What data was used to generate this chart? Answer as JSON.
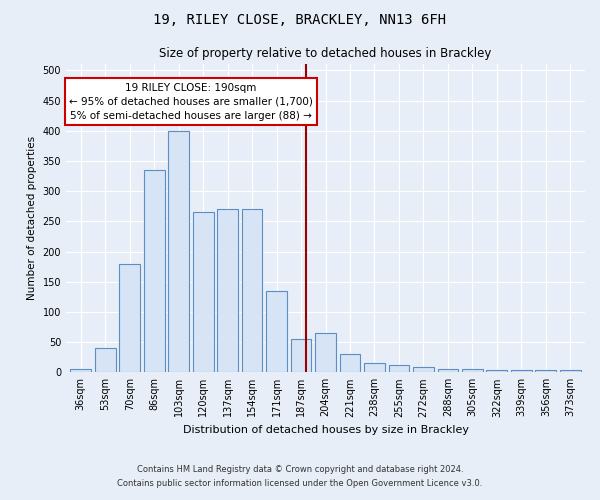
{
  "title1": "19, RILEY CLOSE, BRACKLEY, NN13 6FH",
  "title2": "Size of property relative to detached houses in Brackley",
  "xlabel": "Distribution of detached houses by size in Brackley",
  "ylabel": "Number of detached properties",
  "bar_labels": [
    "36sqm",
    "53sqm",
    "70sqm",
    "86sqm",
    "103sqm",
    "120sqm",
    "137sqm",
    "154sqm",
    "171sqm",
    "187sqm",
    "204sqm",
    "221sqm",
    "238sqm",
    "255sqm",
    "272sqm",
    "288sqm",
    "305sqm",
    "322sqm",
    "339sqm",
    "356sqm",
    "373sqm"
  ],
  "bar_values": [
    5,
    40,
    180,
    335,
    400,
    265,
    270,
    270,
    135,
    55,
    65,
    30,
    15,
    12,
    8,
    5,
    5,
    4,
    3,
    3,
    3
  ],
  "bar_color": "#d6e4f5",
  "bar_edgecolor": "#5b8ec4",
  "vline_color": "#990000",
  "annotation_title": "19 RILEY CLOSE: 190sqm",
  "annotation_line1": "← 95% of detached houses are smaller (1,700)",
  "annotation_line2": "5% of semi-detached houses are larger (88) →",
  "annotation_box_facecolor": "#ffffff",
  "annotation_box_edgecolor": "#cc0000",
  "ylim_max": 510,
  "yticks": [
    0,
    50,
    100,
    150,
    200,
    250,
    300,
    350,
    400,
    450,
    500
  ],
  "footnote1": "Contains HM Land Registry data © Crown copyright and database right 2024.",
  "footnote2": "Contains public sector information licensed under the Open Government Licence v3.0.",
  "bg_color": "#e8eef7",
  "grid_color": "#ffffff",
  "title1_fontsize": 10,
  "title2_fontsize": 8.5,
  "xlabel_fontsize": 8,
  "ylabel_fontsize": 7.5,
  "tick_fontsize": 7,
  "annotation_fontsize": 7.5,
  "footnote_fontsize": 6
}
